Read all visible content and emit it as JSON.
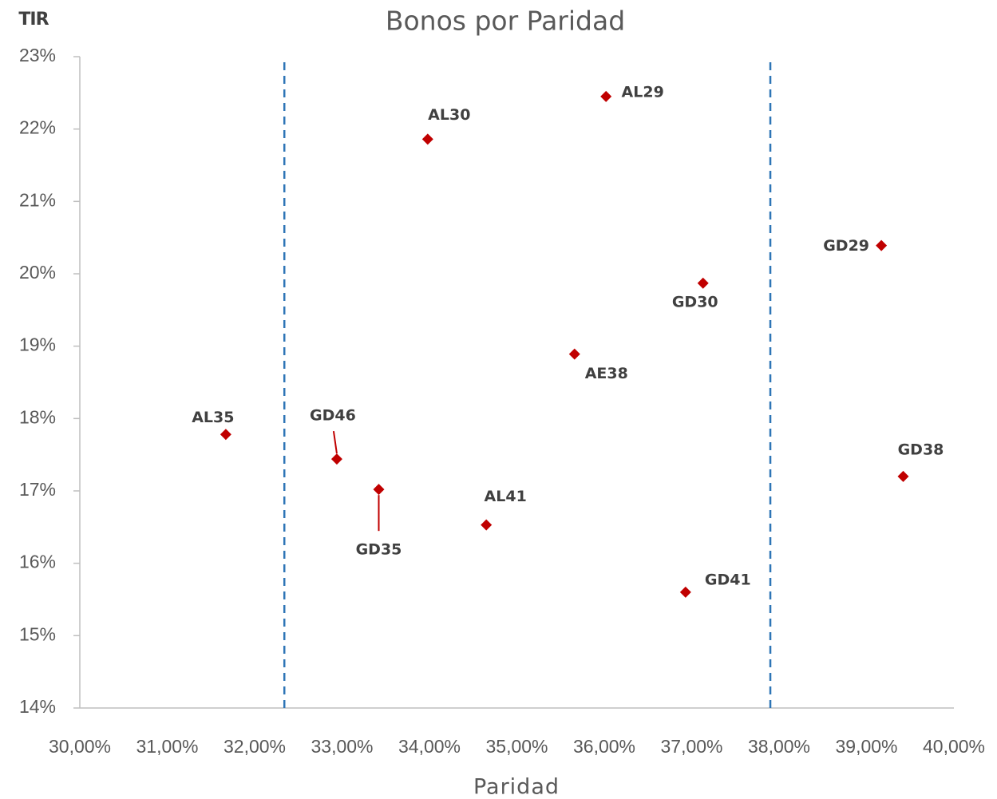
{
  "chart_data": {
    "type": "scatter",
    "title": "Bonos por Paridad",
    "y_label": "TIR",
    "x_label": "Paridad",
    "color": "#c00000",
    "point_labels": [
      "AL35",
      "GD46",
      "GD35",
      "AL30",
      "AL41",
      "AE38",
      "AL29",
      "GD41",
      "GD30",
      "GD29",
      "GD38"
    ],
    "x": [
      31.67,
      32.94,
      33.42,
      33.98,
      34.65,
      35.66,
      36.02,
      36.93,
      37.13,
      39.17,
      39.42
    ],
    "values": [
      17.78,
      17.44,
      17.02,
      21.86,
      16.53,
      18.89,
      22.45,
      15.6,
      19.87,
      20.39,
      17.2
    ],
    "reference_x": [
      32.34,
      37.9
    ],
    "reference_color": "#2e75b6",
    "xlim": [
      30,
      40
    ],
    "ylim": [
      14,
      23
    ],
    "xticks": [
      {
        "value": 30,
        "label": "30,00%"
      },
      {
        "value": 31,
        "label": "31,00%"
      },
      {
        "value": 32,
        "label": "32,00%"
      },
      {
        "value": 33,
        "label": "33,00%"
      },
      {
        "value": 34,
        "label": "34,00%"
      },
      {
        "value": 35,
        "label": "35,00%"
      },
      {
        "value": 36,
        "label": "36,00%"
      },
      {
        "value": 37,
        "label": "37,00%"
      },
      {
        "value": 38,
        "label": "38,00%"
      },
      {
        "value": 39,
        "label": "39,00%"
      },
      {
        "value": 40,
        "label": "40,00%"
      }
    ],
    "yticks": [
      {
        "value": 14,
        "label": "14%"
      },
      {
        "value": 15,
        "label": "15%"
      },
      {
        "value": 16,
        "label": "16%"
      },
      {
        "value": 17,
        "label": "17%"
      },
      {
        "value": 18,
        "label": "18%"
      },
      {
        "value": 19,
        "label": "19%"
      },
      {
        "value": 20,
        "label": "20%"
      },
      {
        "value": 21,
        "label": "21%"
      },
      {
        "value": 22,
        "label": "22%"
      },
      {
        "value": 23,
        "label": "23%"
      }
    ],
    "grid": false
  }
}
